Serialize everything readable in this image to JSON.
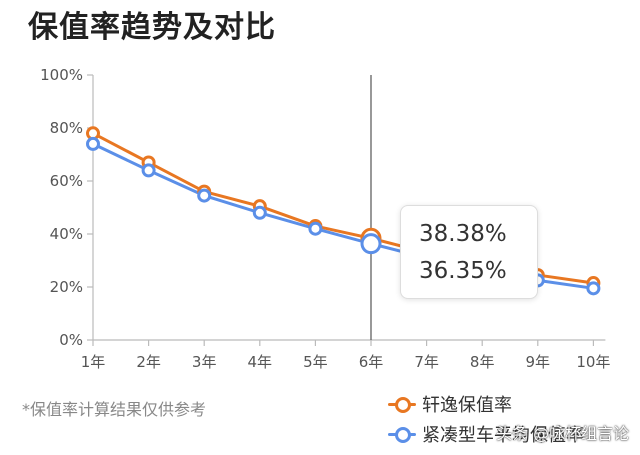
{
  "title": "保值率趋势及对比",
  "footnote": "*保值率计算结果仅供参考",
  "watermark": "头条 @咏杯组言论",
  "colors": {
    "series1": "#E87722",
    "series2": "#5B8FE8",
    "axis": "#bbbbbb",
    "crosshair": "#555555"
  },
  "tooltip": {
    "category": "6年",
    "values": [
      "38.38%",
      "36.35%"
    ]
  },
  "chart_data": {
    "type": "line",
    "title": "保值率趋势及对比",
    "categories": [
      "1年",
      "2年",
      "3年",
      "4年",
      "5年",
      "6年",
      "7年",
      "8年",
      "9年",
      "10年"
    ],
    "y_ticks": [
      "0%",
      "20%",
      "40%",
      "60%",
      "80%",
      "100%"
    ],
    "ylim": [
      0,
      100
    ],
    "grid": false,
    "legend_position": "bottom-right",
    "highlighted_category": "6年",
    "series": [
      {
        "name": "轩逸保值率",
        "values": [
          78,
          67,
          56,
          50.5,
          43,
          38.38,
          33,
          28.5,
          24.5,
          21.5
        ]
      },
      {
        "name": "紧凑型车平均保值率",
        "values": [
          74,
          64,
          54.5,
          48,
          42,
          36.35,
          31,
          26,
          22.5,
          19.5
        ]
      }
    ]
  }
}
